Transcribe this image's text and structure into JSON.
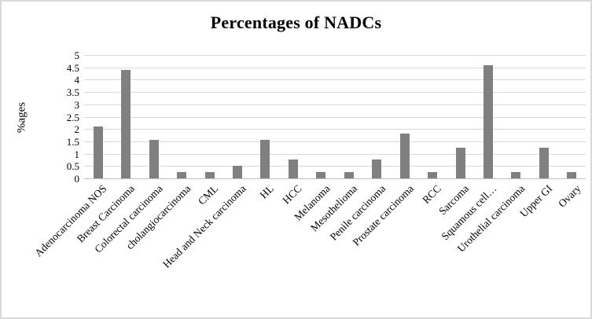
{
  "chart_data": {
    "type": "bar",
    "title": "Percentages of NADCs",
    "xlabel": "",
    "ylabel": "%ages",
    "categories": [
      "Adenocarcinoma NOS",
      "Breast Carcinoma",
      "Colorectal carcinoma",
      "cholangiocarcinoma",
      "CML",
      "Head and Neck carcinoma",
      "HL",
      "HCC",
      "Melanoma",
      "Mesothelioma",
      "Penile carcinoma",
      "Prostate carcinoma",
      "RCC",
      "Sarcoma",
      "Squamous cell…",
      "Urothelial carcinoma",
      "Upper GI",
      "Ovary"
    ],
    "values": [
      2.1,
      4.4,
      1.55,
      0.25,
      0.25,
      0.5,
      1.55,
      0.75,
      0.25,
      0.25,
      0.75,
      1.8,
      0.25,
      1.25,
      4.6,
      0.25,
      1.25,
      0.25
    ],
    "ylim": [
      0,
      5
    ],
    "ytick_step": 0.5,
    "ytick_labels": [
      "0",
      "0.5",
      "1",
      "1.5",
      "2",
      "2.5",
      "3",
      "3.5",
      "4",
      "4.5",
      "5"
    ],
    "grid": "horizontal",
    "legend_position": "none",
    "bar_color": "#808080",
    "gridline_color": "#d9d9d9",
    "axis_line_color": "#bfbfbf",
    "text_color": "#000000",
    "frame_border_color": "#d9d9d9"
  }
}
